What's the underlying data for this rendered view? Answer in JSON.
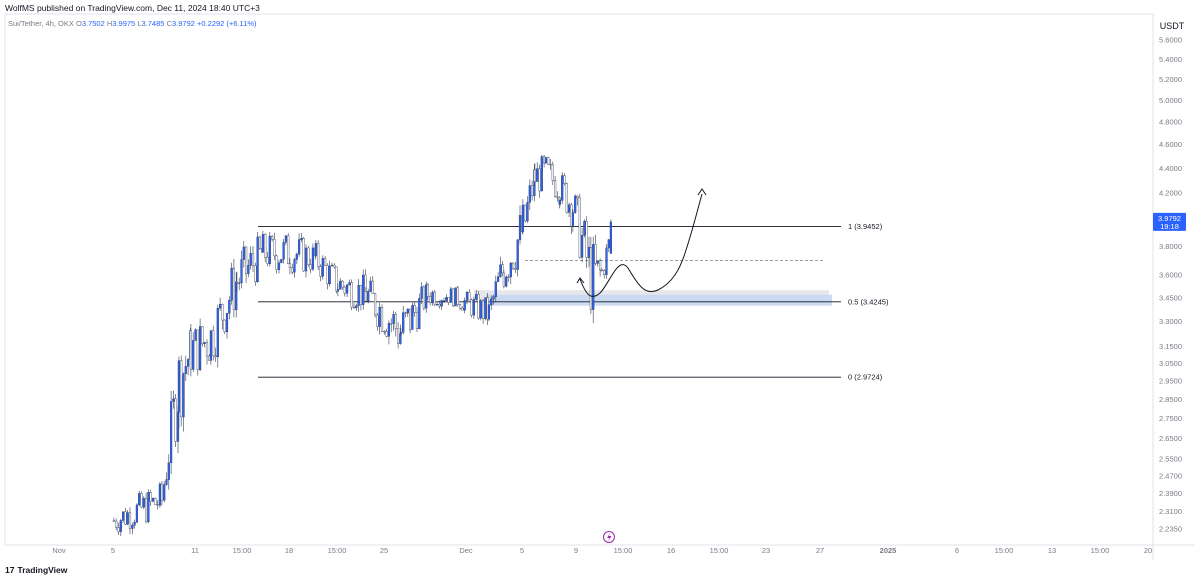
{
  "header": {
    "published": "WolfMS published on TradingView.com, Dec 11, 2024 18:40 UTC+3",
    "symbol": "Sui/Tether, 4h, OKX",
    "open_label": "O",
    "open": "3.7502",
    "high_label": "H",
    "high": "3.9975",
    "low_label": "L",
    "low": "3.7485",
    "close_label": "C",
    "close": "3.9792",
    "change": "+0.2292 (+6.11%)",
    "currency": "USDT"
  },
  "price_badge": {
    "price": "3.9792",
    "countdown": "19:18",
    "color": "#2962ff"
  },
  "footer": {
    "brand": "TradingView",
    "brand_mark": "17"
  },
  "colors": {
    "up": "#2962ff",
    "down": "#ffffff",
    "wick": "#2f3a55",
    "zone_blue": "#c8d8f4",
    "zone_grey": "#e6e7ea",
    "line": "#131722"
  },
  "chart_data": {
    "type": "candlestick",
    "scale": "log",
    "y_ticks": [
      "5.6000",
      "5.4000",
      "5.2000",
      "5.0000",
      "4.8000",
      "4.6000",
      "4.4000",
      "4.2000",
      "3.8000",
      "3.6000",
      "3.4500",
      "3.3000",
      "3.1500",
      "3.0500",
      "2.9500",
      "2.8500",
      "2.7500",
      "2.6500",
      "2.5500",
      "2.4700",
      "2.3900",
      "2.3100",
      "2.2350"
    ],
    "x_ticks": [
      "Nov",
      "5",
      "11",
      "15:00",
      "18",
      "15:00",
      "25",
      "Dec",
      "5",
      "9",
      "15:00",
      "16",
      "15:00",
      "23",
      "27",
      "2025",
      "6",
      "15:00",
      "13",
      "15:00",
      "20"
    ],
    "last_close": 3.9792,
    "fib_levels": [
      {
        "label": "1 (3.9452)",
        "value": 3.9452
      },
      {
        "label": "0.5 (3.4245)",
        "value": 3.4245
      },
      {
        "label": "0 (2.9724)",
        "value": 2.9724
      }
    ],
    "dashed_level": 3.7,
    "zones": [
      {
        "name": "grey",
        "from": 3.5,
        "to": 3.42
      },
      {
        "name": "blue",
        "from": 3.47,
        "to": 3.4
      }
    ],
    "key_points": [
      {
        "label": "Nov 5",
        "low": 2.18,
        "high": 2.36
      },
      {
        "label": "Nov 10",
        "low": 2.24,
        "high": 2.48
      },
      {
        "label": "Nov 11",
        "low": 2.6,
        "high": 3.3
      },
      {
        "label": "Nov 12",
        "low": 2.9,
        "high": 3.35
      },
      {
        "label": "Nov 14",
        "low": 2.95,
        "high": 3.45
      },
      {
        "label": "Nov 15",
        "low": 3.28,
        "high": 3.85
      },
      {
        "label": "Nov 16",
        "low": 3.55,
        "high": 3.96
      },
      {
        "label": "Nov 18",
        "low": 3.55,
        "high": 3.97
      },
      {
        "label": "Nov 20",
        "low": 3.55,
        "high": 3.88
      },
      {
        "label": "Nov 22",
        "low": 3.38,
        "high": 3.7
      },
      {
        "label": "Nov 24",
        "low": 3.3,
        "high": 3.65
      },
      {
        "label": "Nov 26",
        "low": 2.97,
        "high": 3.5
      },
      {
        "label": "Nov 28",
        "low": 3.35,
        "high": 3.6
      },
      {
        "label": "Nov 30",
        "low": 3.38,
        "high": 3.55
      },
      {
        "label": "Dec 2",
        "low": 3.2,
        "high": 3.5
      },
      {
        "label": "Dec 3",
        "low": 3.4,
        "high": 3.9
      },
      {
        "label": "Dec 4",
        "low": 3.58,
        "high": 4.25
      },
      {
        "label": "Dec 5",
        "low": 4.1,
        "high": 4.55
      },
      {
        "label": "Dec 6",
        "low": 4.15,
        "high": 4.58
      },
      {
        "label": "Dec 7",
        "low": 4.05,
        "high": 4.45
      },
      {
        "label": "Dec 8",
        "low": 3.85,
        "high": 4.35
      },
      {
        "label": "Dec 9",
        "low": 3.2,
        "high": 4.0
      },
      {
        "label": "Dec 10",
        "low": 3.45,
        "high": 3.78
      },
      {
        "label": "Dec 11",
        "low": 3.7485,
        "high": 3.9975
      }
    ]
  }
}
